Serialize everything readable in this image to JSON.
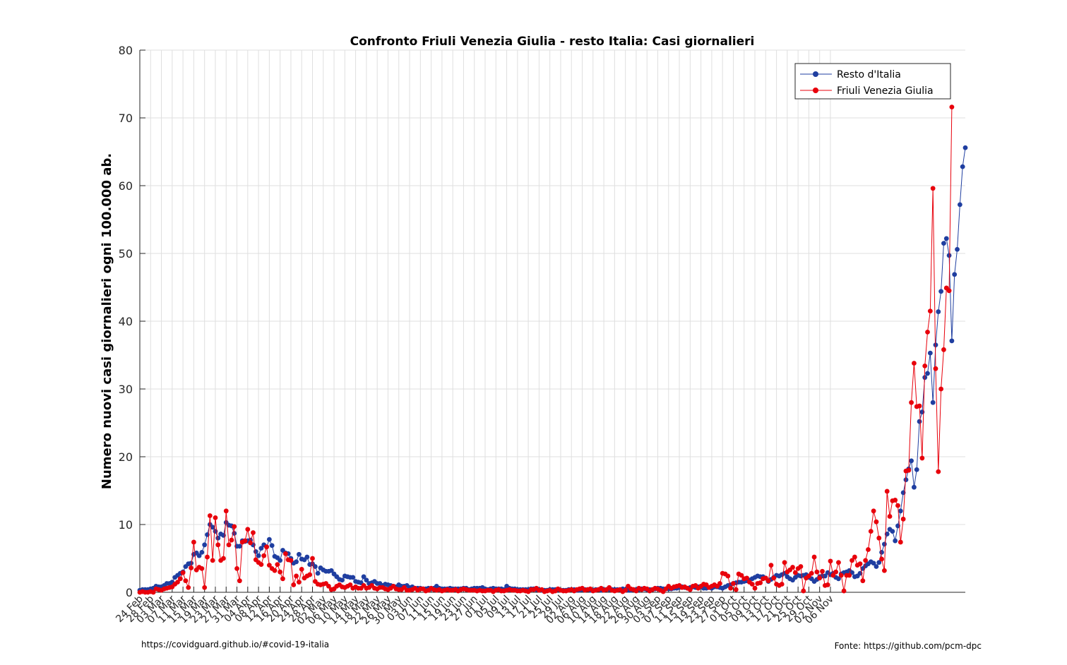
{
  "chart_data": {
    "type": "line",
    "title": "Confronto Friuli Venezia Giulia - resto Italia: Casi giornalieri",
    "xlabel": "",
    "ylabel": "Numero nuovi casi giornalieri ogni 100.000 ab.",
    "ylim": [
      0,
      80
    ],
    "yticks": [
      0,
      10,
      20,
      30,
      40,
      50,
      60,
      70,
      80
    ],
    "start_date": "2020-02-24",
    "tick_step_days": 4,
    "x_tick_labels": [
      "24 Feb",
      "28 Feb",
      "03 Mar",
      "07 Mar",
      "11 Mar",
      "15 Mar",
      "19 Mar",
      "23 Mar",
      "27 Mar",
      "31 Mar",
      "04 Apr",
      "08 Apr",
      "12 Apr",
      "16 Apr",
      "20 Apr",
      "24 Apr",
      "28 Apr",
      "02 May",
      "06 May",
      "10 May",
      "14 May",
      "18 May",
      "22 May",
      "26 May",
      "30 May",
      "03 Jun",
      "07 Jun",
      "11 Jun",
      "15 Jun",
      "19 Jun",
      "23 Jun",
      "27 Jun",
      "01 Jul",
      "05 Jul",
      "09 Jul",
      "13 Jul",
      "17 Jul",
      "21 Jul",
      "25 Jul",
      "29 Jul",
      "02 Aug",
      "06 Aug",
      "10 Aug",
      "14 Aug",
      "18 Aug",
      "22 Aug",
      "26 Aug",
      "30 Aug",
      "03 Sep",
      "07 Sep",
      "11 Sep",
      "15 Sep",
      "19 Sep",
      "23 Sep",
      "27 Sep",
      "01 Oct",
      "05 Oct",
      "09 Oct",
      "13 Oct",
      "17 Oct",
      "21 Oct",
      "25 Oct",
      "29 Oct",
      "02 Nov",
      "06 Nov"
    ],
    "grid": true,
    "legend_position": "top-right",
    "series": [
      {
        "name": "Resto d'Italia",
        "color": "#1f3ea0",
        "values": [
          0.3,
          0.4,
          0.4,
          0.4,
          0.5,
          0.6,
          0.9,
          0.8,
          0.8,
          1.0,
          1.3,
          1.3,
          1.5,
          2.2,
          2.5,
          2.8,
          3.0,
          3.8,
          4.2,
          4.3,
          5.6,
          5.8,
          5.4,
          5.9,
          7.0,
          8.5,
          10.0,
          9.6,
          9.0,
          8.0,
          8.6,
          8.4,
          10.3,
          9.9,
          9.8,
          8.7,
          6.8,
          6.8,
          7.6,
          7.5,
          7.6,
          7.7,
          7.0,
          6.0,
          5.4,
          6.5,
          7.0,
          6.7,
          7.8,
          6.9,
          5.3,
          5.1,
          4.7,
          6.2,
          5.8,
          5.7,
          5.0,
          4.3,
          4.5,
          5.6,
          4.9,
          4.8,
          5.2,
          4.1,
          4.2,
          3.8,
          2.8,
          3.6,
          3.3,
          3.1,
          3.1,
          3.2,
          2.7,
          2.3,
          1.9,
          1.8,
          2.4,
          2.3,
          2.2,
          2.2,
          1.6,
          1.5,
          1.4,
          2.3,
          1.8,
          1.3,
          1.4,
          1.6,
          1.3,
          1.3,
          1.0,
          1.2,
          1.1,
          1.0,
          0.9,
          0.8,
          1.1,
          0.9,
          0.9,
          1.0,
          0.7,
          0.8,
          0.6,
          0.6,
          0.6,
          0.5,
          0.5,
          0.6,
          0.5,
          0.6,
          0.9,
          0.6,
          0.5,
          0.5,
          0.5,
          0.6,
          0.5,
          0.5,
          0.5,
          0.5,
          0.6,
          0.6,
          0.4,
          0.5,
          0.6,
          0.6,
          0.6,
          0.7,
          0.5,
          0.4,
          0.5,
          0.6,
          0.5,
          0.5,
          0.5,
          0.4,
          0.9,
          0.6,
          0.5,
          0.5,
          0.4,
          0.4,
          0.4,
          0.4,
          0.4,
          0.5,
          0.5,
          0.4,
          0.4,
          0.3,
          0.3,
          0.3,
          0.4,
          0.4,
          0.4,
          0.4,
          0.3,
          0.3,
          0.3,
          0.4,
          0.4,
          0.4,
          0.3,
          0.3,
          0.4,
          0.4,
          0.4,
          0.3,
          0.3,
          0.4,
          0.4,
          0.3,
          0.4,
          0.4,
          0.4,
          0.4,
          0.4,
          0.4,
          0.4,
          0.5,
          0.4,
          0.3,
          0.3,
          0.4,
          0.4,
          0.4,
          0.5,
          0.5,
          0.4,
          0.4,
          0.4,
          0.5,
          0.6,
          0.6,
          0.5,
          0.5,
          0.5,
          0.5,
          0.6,
          0.6,
          0.7,
          0.8,
          0.7,
          0.6,
          0.7,
          0.8,
          0.7,
          0.8,
          0.8,
          0.6,
          0.6,
          0.7,
          0.6,
          0.8,
          0.8,
          0.7,
          0.6,
          0.8,
          1.0,
          1.1,
          1.3,
          1.4,
          1.5,
          1.5,
          1.6,
          1.7,
          1.8,
          2.0,
          2.2,
          2.4,
          2.3,
          2.3,
          2.1,
          1.6,
          1.9,
          2.2,
          2.5,
          2.4,
          2.6,
          2.8,
          2.3,
          2.0,
          1.8,
          2.2,
          2.5,
          2.4,
          2.5,
          2.6,
          2.2,
          2.0,
          1.6,
          1.9,
          2.3,
          2.4,
          2.4,
          2.9,
          2.6,
          2.8,
          2.2,
          2.0,
          2.7,
          2.9,
          3.0,
          3.2,
          2.9,
          2.3,
          2.4,
          2.8,
          3.5,
          3.9,
          4.2,
          4.5,
          4.3,
          3.8,
          4.4,
          5.9,
          7.1,
          8.6,
          9.3,
          9.0,
          7.6,
          9.8,
          12.0,
          14.7,
          16.6,
          18.2,
          19.4,
          15.5,
          18.1,
          25.2,
          26.6,
          31.7,
          32.3,
          35.3,
          28.0,
          36.5,
          41.4,
          44.4,
          51.5,
          52.2,
          49.7,
          37.1,
          46.9,
          50.6,
          57.2,
          62.8,
          65.6
        ]
      },
      {
        "name": "Friuli Venezia Giulia",
        "color": "#e8000b",
        "values": [
          0.0,
          0.1,
          0.0,
          0.0,
          0.1,
          0.0,
          0.5,
          0.4,
          0.3,
          0.5,
          0.6,
          0.7,
          0.8,
          1.2,
          1.5,
          2.0,
          2.9,
          1.7,
          0.7,
          3.6,
          7.4,
          3.3,
          3.7,
          3.5,
          0.7,
          5.2,
          11.3,
          4.7,
          11.0,
          7.0,
          4.7,
          5.0,
          12.0,
          7.0,
          7.7,
          9.7,
          3.5,
          1.7,
          7.4,
          7.6,
          9.3,
          7.3,
          8.8,
          4.8,
          4.4,
          4.1,
          5.4,
          6.7,
          4.0,
          3.5,
          3.2,
          4.1,
          3.0,
          2.0,
          5.7,
          4.8,
          4.7,
          1.1,
          2.4,
          1.5,
          3.4,
          2.1,
          2.4,
          2.6,
          5.0,
          1.6,
          1.2,
          1.1,
          1.2,
          1.3,
          0.9,
          0.4,
          0.5,
          0.9,
          1.1,
          0.8,
          0.7,
          0.9,
          1.1,
          0.6,
          0.8,
          0.6,
          0.6,
          1.0,
          0.6,
          0.7,
          1.0,
          0.6,
          0.5,
          0.7,
          0.7,
          0.5,
          0.4,
          0.6,
          0.9,
          0.5,
          0.4,
          0.4,
          0.7,
          0.3,
          0.3,
          0.4,
          0.6,
          0.3,
          0.5,
          0.5,
          0.2,
          0.3,
          0.6,
          0.4,
          0.3,
          0.4,
          0.2,
          0.3,
          0.4,
          0.3,
          0.3,
          0.4,
          0.2,
          0.4,
          0.5,
          0.4,
          0.3,
          0.3,
          0.3,
          0.2,
          0.3,
          0.2,
          0.2,
          0.3,
          0.3,
          0.1,
          0.3,
          0.4,
          0.2,
          0.2,
          0.3,
          0.4,
          0.3,
          0.3,
          0.2,
          0.2,
          0.3,
          0.2,
          0.1,
          0.4,
          0.4,
          0.6,
          0.3,
          0.4,
          0.1,
          0.2,
          0.3,
          0.1,
          0.2,
          0.5,
          0.3,
          0.2,
          0.2,
          0.3,
          0.4,
          0.2,
          0.4,
          0.5,
          0.6,
          0.3,
          0.4,
          0.5,
          0.2,
          0.3,
          0.4,
          0.6,
          0.3,
          0.4,
          0.7,
          0.3,
          0.2,
          0.3,
          0.4,
          0.1,
          0.3,
          0.9,
          0.5,
          0.4,
          0.2,
          0.6,
          0.4,
          0.6,
          0.5,
          0.2,
          0.4,
          0.6,
          0.5,
          0.3,
          0.1,
          0.5,
          0.9,
          0.6,
          0.8,
          0.9,
          1.0,
          0.7,
          0.8,
          0.6,
          0.4,
          0.9,
          1.0,
          0.6,
          0.9,
          1.2,
          1.1,
          0.7,
          0.9,
          1.1,
          0.9,
          1.3,
          2.8,
          2.7,
          2.4,
          0.6,
          1.3,
          0.4,
          2.7,
          2.5,
          2.0,
          2.1,
          1.5,
          1.2,
          0.6,
          1.3,
          1.4,
          2.0,
          2.1,
          1.7,
          4.0,
          2.1,
          1.2,
          1.0,
          1.2,
          4.4,
          3.0,
          3.3,
          3.7,
          2.9,
          3.5,
          3.8,
          0.2,
          2.1,
          2.4,
          2.8,
          5.2,
          3.0,
          2.1,
          3.1,
          1.0,
          1.1,
          4.6,
          2.5,
          3.0,
          4.4,
          2.5,
          0.2,
          2.5,
          2.5,
          4.7,
          5.2,
          4.0,
          4.2,
          1.7,
          4.7,
          6.3,
          9.0,
          12.0,
          10.4,
          8.0,
          4.9,
          3.2,
          14.9,
          11.2,
          13.5,
          13.6,
          12.8,
          7.4,
          10.8,
          17.9,
          18.0,
          28.0,
          33.8,
          27.4,
          27.5,
          19.8,
          33.4,
          38.4,
          41.5,
          59.6,
          33.0,
          17.8,
          30.0,
          35.8,
          44.9,
          44.5,
          71.6
        ]
      }
    ]
  },
  "footer": {
    "left": "https://covidguard.github.io/#covid-19-italia",
    "right": "Fonte: https://github.com/pcm-dpc"
  }
}
